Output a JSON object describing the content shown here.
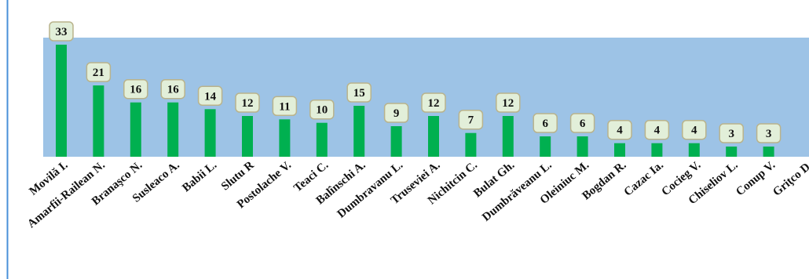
{
  "chart_data": {
    "type": "bar",
    "categories": [
      "Movilă I.",
      "Amarfii-Railean N.",
      "Branaşco N.",
      "Susleaco A.",
      "Babii L.",
      "Slutu R",
      "Postolache V.",
      "Teaci C.",
      "Balînschi A.",
      "Dumbravanu L.",
      "Truseviei A.",
      "Nichitcin C.",
      "Bulat Gh.",
      "Dumbrăveanu L.",
      "Oleiniuc M.",
      "Bogdan R.",
      "Cazac Ia.",
      "Cocieg V.",
      "Chiseliov L.",
      "Conup V.",
      "Griţco D."
    ],
    "values": [
      33,
      21,
      16,
      16,
      14,
      12,
      11,
      10,
      15,
      9,
      12,
      7,
      12,
      6,
      6,
      4,
      4,
      4,
      3,
      3,
      null
    ],
    "value_labels": [
      "33",
      "21",
      "16",
      "16",
      "14",
      "12",
      "11",
      "10",
      "15",
      "9",
      "12",
      "7",
      "12",
      "6",
      "6",
      "4",
      "4",
      "4",
      "3",
      "3",
      ""
    ],
    "title": "",
    "xlabel": "",
    "ylabel": "",
    "ylim": [
      0,
      33
    ],
    "grid": false,
    "legend": "none",
    "colors": {
      "bar": "#00b050",
      "plot_area": "#9dc3e6",
      "label_box_fill": "#e2efd9",
      "label_box_stroke": "#b9b38c",
      "axis": "#4a90d9"
    }
  }
}
